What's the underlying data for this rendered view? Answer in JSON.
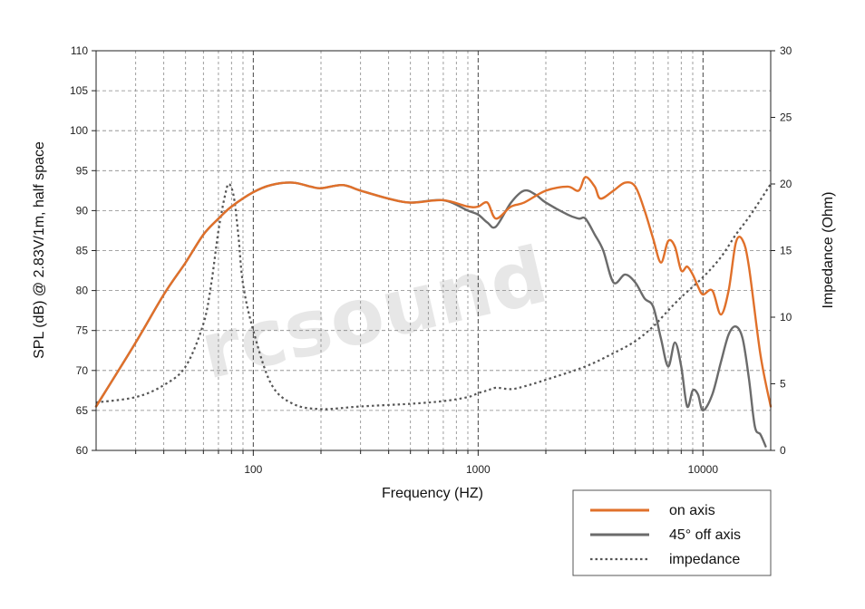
{
  "chart_data": {
    "type": "line",
    "title": "",
    "xlabel": "Frequency (HZ)",
    "ylabel": "SPL (dB) @ 2.83V/1m, half space",
    "ylabel_right": "Impedance (Ohm)",
    "x_scale": "log",
    "xlim": [
      20,
      20000
    ],
    "ylim": [
      60,
      110
    ],
    "ylim_right": [
      0,
      30
    ],
    "x_ticks": [
      "100",
      "1000",
      "10000"
    ],
    "y_ticks": [
      "60",
      "65",
      "70",
      "75",
      "80",
      "85",
      "90",
      "95",
      "100",
      "105",
      "110"
    ],
    "y_ticks_right": [
      "0",
      "5",
      "10",
      "15",
      "20",
      "25",
      "30"
    ],
    "grid": true,
    "legend_position": "bottom-right",
    "watermark": "rcsound",
    "series": [
      {
        "name": "on axis",
        "color": "#e0702a",
        "style": "solid",
        "axis": "left",
        "points": [
          [
            20,
            65.5
          ],
          [
            30,
            73.5
          ],
          [
            40,
            79.5
          ],
          [
            50,
            83.5
          ],
          [
            60,
            87
          ],
          [
            70,
            89
          ],
          [
            80,
            90.5
          ],
          [
            100,
            92.3
          ],
          [
            120,
            93.2
          ],
          [
            150,
            93.5
          ],
          [
            180,
            93
          ],
          [
            200,
            92.8
          ],
          [
            250,
            93.2
          ],
          [
            300,
            92.5
          ],
          [
            400,
            91.5
          ],
          [
            500,
            91
          ],
          [
            700,
            91.3
          ],
          [
            900,
            90.5
          ],
          [
            1000,
            90.5
          ],
          [
            1100,
            91
          ],
          [
            1200,
            89
          ],
          [
            1400,
            90.5
          ],
          [
            1600,
            91
          ],
          [
            2000,
            92.5
          ],
          [
            2500,
            93
          ],
          [
            2800,
            92.5
          ],
          [
            3000,
            94.2
          ],
          [
            3300,
            93
          ],
          [
            3500,
            91.5
          ],
          [
            4000,
            92.5
          ],
          [
            4500,
            93.5
          ],
          [
            5000,
            93
          ],
          [
            5500,
            90
          ],
          [
            6000,
            86.5
          ],
          [
            6500,
            83.5
          ],
          [
            7000,
            86.2
          ],
          [
            7500,
            85.5
          ],
          [
            8000,
            82.5
          ],
          [
            8500,
            83
          ],
          [
            9000,
            82
          ],
          [
            9500,
            80.5
          ],
          [
            10000,
            79.5
          ],
          [
            11000,
            80
          ],
          [
            12000,
            77
          ],
          [
            13000,
            80
          ],
          [
            14000,
            86
          ],
          [
            15000,
            86.3
          ],
          [
            16000,
            83
          ],
          [
            18000,
            72
          ],
          [
            20000,
            65.5
          ]
        ]
      },
      {
        "name": "45° off axis",
        "color": "#6b6b6b",
        "style": "solid",
        "axis": "left",
        "points": [
          [
            20,
            65.5
          ],
          [
            30,
            73.5
          ],
          [
            40,
            79.5
          ],
          [
            50,
            83.5
          ],
          [
            60,
            87
          ],
          [
            70,
            89
          ],
          [
            80,
            90.5
          ],
          [
            100,
            92.3
          ],
          [
            120,
            93.2
          ],
          [
            150,
            93.5
          ],
          [
            180,
            93
          ],
          [
            200,
            92.8
          ],
          [
            250,
            93.2
          ],
          [
            300,
            92.5
          ],
          [
            400,
            91.5
          ],
          [
            500,
            91
          ],
          [
            700,
            91.3
          ],
          [
            900,
            90
          ],
          [
            1000,
            89.5
          ],
          [
            1100,
            88.5
          ],
          [
            1200,
            88
          ],
          [
            1400,
            91
          ],
          [
            1600,
            92.5
          ],
          [
            1800,
            92
          ],
          [
            2000,
            91
          ],
          [
            2500,
            89.5
          ],
          [
            2800,
            89
          ],
          [
            3000,
            89
          ],
          [
            3300,
            87
          ],
          [
            3600,
            85
          ],
          [
            4000,
            81
          ],
          [
            4500,
            82
          ],
          [
            5000,
            81
          ],
          [
            5500,
            79
          ],
          [
            6000,
            78
          ],
          [
            6500,
            74
          ],
          [
            7000,
            70.5
          ],
          [
            7500,
            73.5
          ],
          [
            8000,
            70.5
          ],
          [
            8500,
            65.5
          ],
          [
            9000,
            67.5
          ],
          [
            9500,
            67
          ],
          [
            10000,
            65
          ],
          [
            11000,
            67
          ],
          [
            12000,
            71
          ],
          [
            13000,
            74.5
          ],
          [
            14000,
            75.5
          ],
          [
            15000,
            74
          ],
          [
            16000,
            69
          ],
          [
            17000,
            63
          ],
          [
            18000,
            62
          ],
          [
            19000,
            60.5
          ]
        ]
      },
      {
        "name": "impedance",
        "color": "#555555",
        "style": "dotted",
        "axis": "right",
        "points": [
          [
            20,
            3.6
          ],
          [
            30,
            4
          ],
          [
            40,
            4.9
          ],
          [
            50,
            6.3
          ],
          [
            60,
            9.5
          ],
          [
            65,
            12.5
          ],
          [
            70,
            16.5
          ],
          [
            75,
            19.2
          ],
          [
            78,
            20
          ],
          [
            82,
            19
          ],
          [
            86,
            16
          ],
          [
            90,
            12.5
          ],
          [
            100,
            9
          ],
          [
            120,
            5
          ],
          [
            150,
            3.5
          ],
          [
            200,
            3.1
          ],
          [
            300,
            3.3
          ],
          [
            500,
            3.5
          ],
          [
            700,
            3.7
          ],
          [
            900,
            4
          ],
          [
            1000,
            4.3
          ],
          [
            1100,
            4.5
          ],
          [
            1200,
            4.7
          ],
          [
            1400,
            4.6
          ],
          [
            1600,
            4.8
          ],
          [
            2000,
            5.3
          ],
          [
            3000,
            6.3
          ],
          [
            4000,
            7.3
          ],
          [
            5000,
            8.2
          ],
          [
            6000,
            9.3
          ],
          [
            7000,
            10.5
          ],
          [
            8000,
            11.5
          ],
          [
            10000,
            13
          ],
          [
            12000,
            14.5
          ],
          [
            14000,
            16.2
          ],
          [
            16000,
            17.5
          ],
          [
            18000,
            18.8
          ],
          [
            20000,
            20
          ]
        ]
      }
    ]
  }
}
